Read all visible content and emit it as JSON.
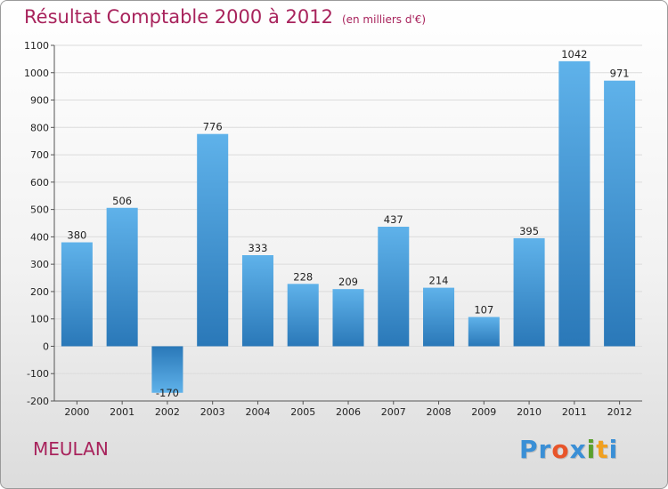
{
  "header": {
    "title": "Résultat Comptable 2000 à 2012",
    "subtitle": "(en milliers d'€)"
  },
  "footer": {
    "town": "MEULAN",
    "logo": [
      "P",
      "r",
      "o",
      "x",
      "i",
      "t",
      "i"
    ],
    "logo_colors": [
      "#3a8fd6",
      "#3a8fd6",
      "#e8552a",
      "#3a8fd6",
      "#5aa02c",
      "#f0a020",
      "#3a8fd6"
    ]
  },
  "colors": {
    "bar_top": "#5fb2ea",
    "bar_bottom": "#2a78b8",
    "accent": "#a8235c",
    "grid": "#dcdcdc"
  },
  "chart_data": {
    "type": "bar",
    "categories": [
      "2000",
      "2001",
      "2002",
      "2003",
      "2004",
      "2005",
      "2006",
      "2007",
      "2008",
      "2009",
      "2010",
      "2011",
      "2012"
    ],
    "values": [
      380,
      506,
      -170,
      776,
      333,
      228,
      209,
      437,
      214,
      107,
      395,
      1042,
      971
    ],
    "data_labels": [
      "380",
      "506",
      "-170",
      "776",
      "333",
      "228",
      "209",
      "437",
      "214",
      "107",
      "395",
      "1042",
      "971"
    ],
    "ylim": [
      -200,
      1100
    ],
    "yticks": [
      "-200",
      "-100",
      "0",
      "100",
      "200",
      "300",
      "400",
      "500",
      "600",
      "700",
      "800",
      "900",
      "1000",
      "1100"
    ],
    "grid": true
  }
}
